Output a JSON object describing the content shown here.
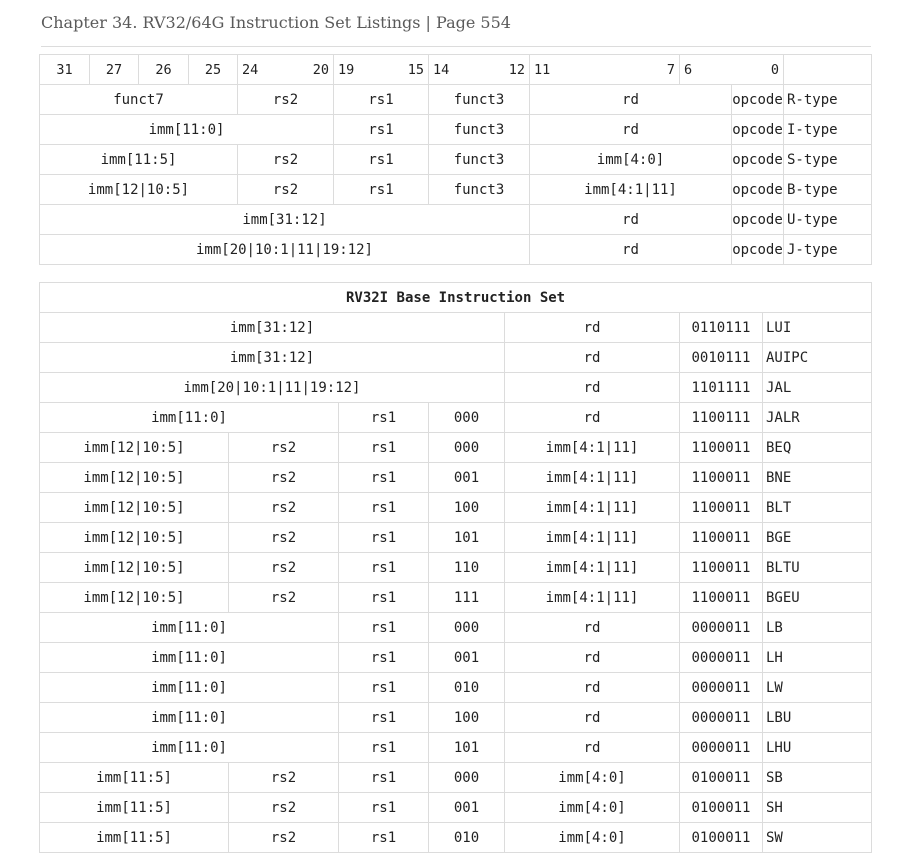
{
  "page": {
    "title": "Chapter 34. RV32/64G Instruction Set Listings | Page 554"
  },
  "format_table": {
    "bit_positions": [
      "31",
      "27",
      "26",
      "25",
      "24",
      "20",
      "19",
      "15",
      "14",
      "12",
      "11",
      "7",
      "6",
      "0"
    ],
    "rows": [
      {
        "funct7": "funct7",
        "rs2": "rs2",
        "rs1": "rs1",
        "funct3": "funct3",
        "rd": "rd",
        "opcode": "opcode",
        "type": "R-type"
      },
      {
        "imm": "imm[11:0]",
        "rs1": "rs1",
        "funct3": "funct3",
        "rd": "rd",
        "opcode": "opcode",
        "type": "I-type"
      },
      {
        "imm_hi": "imm[11:5]",
        "rs2": "rs2",
        "rs1": "rs1",
        "funct3": "funct3",
        "imm_lo": "imm[4:0]",
        "opcode": "opcode",
        "type": "S-type"
      },
      {
        "imm_hi": "imm[12|10:5]",
        "rs2": "rs2",
        "rs1": "rs1",
        "funct3": "funct3",
        "imm_lo": "imm[4:1|11]",
        "opcode": "opcode",
        "type": "B-type"
      },
      {
        "imm": "imm[31:12]",
        "rd": "rd",
        "opcode": "opcode",
        "type": "U-type"
      },
      {
        "imm": "imm[20|10:1|11|19:12]",
        "rd": "rd",
        "opcode": "opcode",
        "type": "J-type"
      }
    ]
  },
  "base_table": {
    "title": "RV32I Base Instruction Set",
    "rows": [
      {
        "kind": "U",
        "imm": "imm[31:12]",
        "rd": "rd",
        "opcode": "0110111",
        "mnemonic": "LUI"
      },
      {
        "kind": "U",
        "imm": "imm[31:12]",
        "rd": "rd",
        "opcode": "0010111",
        "mnemonic": "AUIPC"
      },
      {
        "kind": "U",
        "imm": "imm[20|10:1|11|19:12]",
        "rd": "rd",
        "opcode": "1101111",
        "mnemonic": "JAL"
      },
      {
        "kind": "I",
        "imm": "imm[11:0]",
        "rs1": "rs1",
        "funct3": "000",
        "rd": "rd",
        "opcode": "1100111",
        "mnemonic": "JALR"
      },
      {
        "kind": "B",
        "imm_hi": "imm[12|10:5]",
        "rs2": "rs2",
        "rs1": "rs1",
        "funct3": "000",
        "imm_lo": "imm[4:1|11]",
        "opcode": "1100011",
        "mnemonic": "BEQ"
      },
      {
        "kind": "B",
        "imm_hi": "imm[12|10:5]",
        "rs2": "rs2",
        "rs1": "rs1",
        "funct3": "001",
        "imm_lo": "imm[4:1|11]",
        "opcode": "1100011",
        "mnemonic": "BNE"
      },
      {
        "kind": "B",
        "imm_hi": "imm[12|10:5]",
        "rs2": "rs2",
        "rs1": "rs1",
        "funct3": "100",
        "imm_lo": "imm[4:1|11]",
        "opcode": "1100011",
        "mnemonic": "BLT"
      },
      {
        "kind": "B",
        "imm_hi": "imm[12|10:5]",
        "rs2": "rs2",
        "rs1": "rs1",
        "funct3": "101",
        "imm_lo": "imm[4:1|11]",
        "opcode": "1100011",
        "mnemonic": "BGE"
      },
      {
        "kind": "B",
        "imm_hi": "imm[12|10:5]",
        "rs2": "rs2",
        "rs1": "rs1",
        "funct3": "110",
        "imm_lo": "imm[4:1|11]",
        "opcode": "1100011",
        "mnemonic": "BLTU"
      },
      {
        "kind": "B",
        "imm_hi": "imm[12|10:5]",
        "rs2": "rs2",
        "rs1": "rs1",
        "funct3": "111",
        "imm_lo": "imm[4:1|11]",
        "opcode": "1100011",
        "mnemonic": "BGEU"
      },
      {
        "kind": "I",
        "imm": "imm[11:0]",
        "rs1": "rs1",
        "funct3": "000",
        "rd": "rd",
        "opcode": "0000011",
        "mnemonic": "LB"
      },
      {
        "kind": "I",
        "imm": "imm[11:0]",
        "rs1": "rs1",
        "funct3": "001",
        "rd": "rd",
        "opcode": "0000011",
        "mnemonic": "LH"
      },
      {
        "kind": "I",
        "imm": "imm[11:0]",
        "rs1": "rs1",
        "funct3": "010",
        "rd": "rd",
        "opcode": "0000011",
        "mnemonic": "LW"
      },
      {
        "kind": "I",
        "imm": "imm[11:0]",
        "rs1": "rs1",
        "funct3": "100",
        "rd": "rd",
        "opcode": "0000011",
        "mnemonic": "LBU"
      },
      {
        "kind": "I",
        "imm": "imm[11:0]",
        "rs1": "rs1",
        "funct3": "101",
        "rd": "rd",
        "opcode": "0000011",
        "mnemonic": "LHU"
      },
      {
        "kind": "S",
        "imm_hi": "imm[11:5]",
        "rs2": "rs2",
        "rs1": "rs1",
        "funct3": "000",
        "imm_lo": "imm[4:0]",
        "opcode": "0100011",
        "mnemonic": "SB"
      },
      {
        "kind": "S",
        "imm_hi": "imm[11:5]",
        "rs2": "rs2",
        "rs1": "rs1",
        "funct3": "001",
        "imm_lo": "imm[4:0]",
        "opcode": "0100011",
        "mnemonic": "SH"
      },
      {
        "kind": "S",
        "imm_hi": "imm[11:5]",
        "rs2": "rs2",
        "rs1": "rs1",
        "funct3": "010",
        "imm_lo": "imm[4:0]",
        "opcode": "0100011",
        "mnemonic": "SW"
      }
    ]
  }
}
